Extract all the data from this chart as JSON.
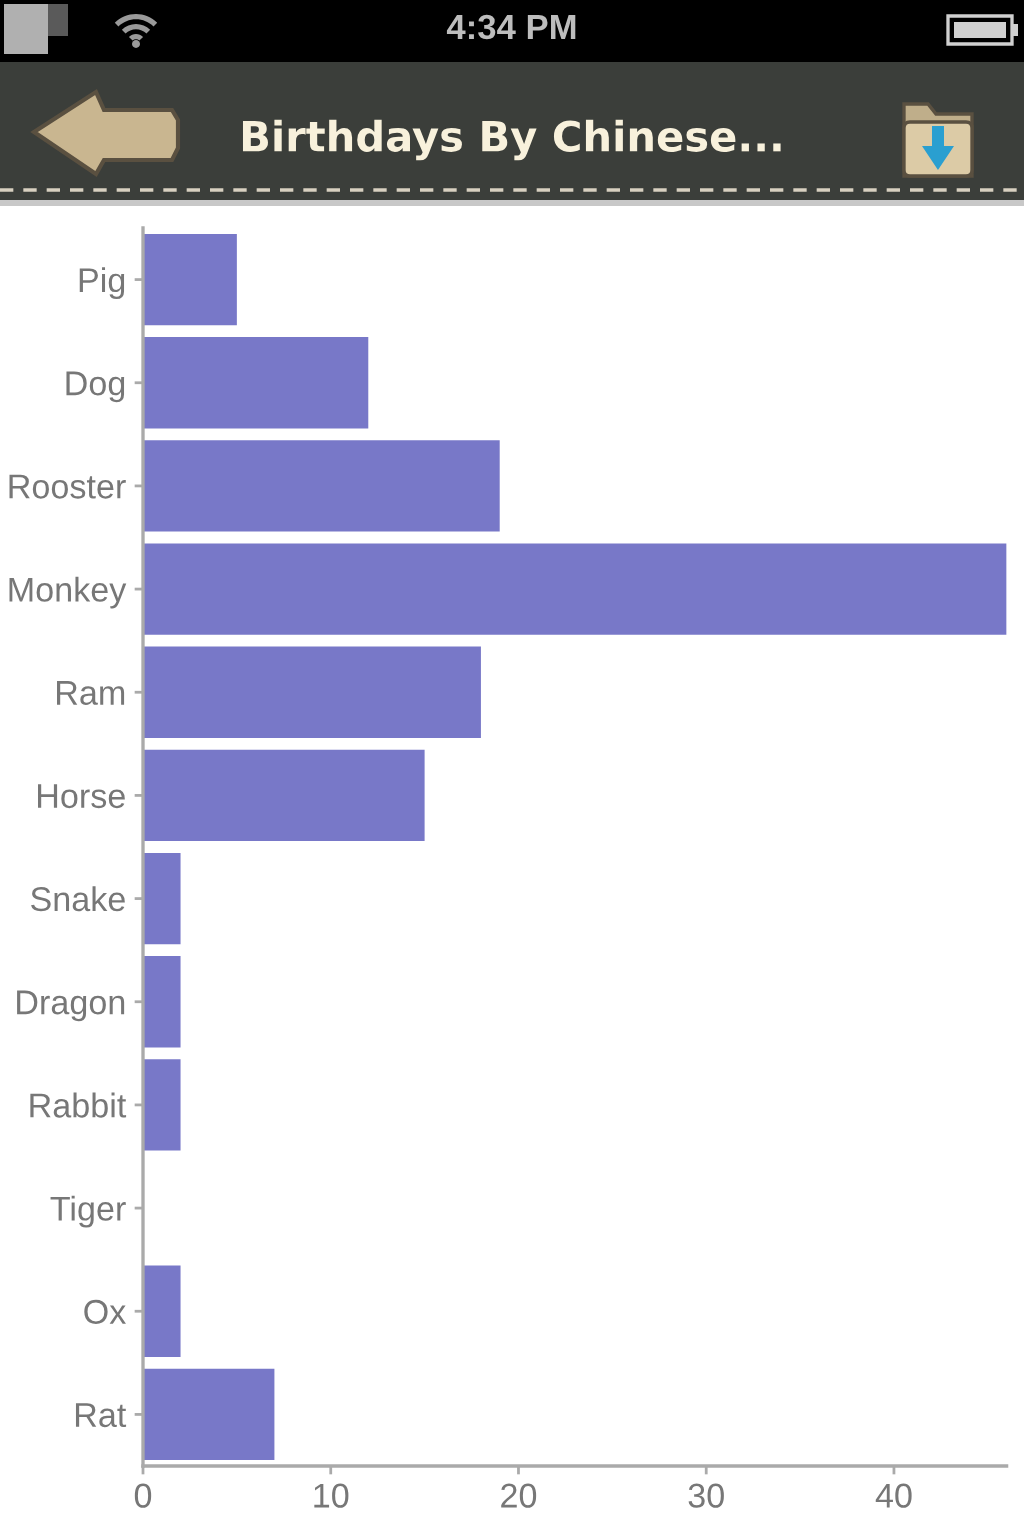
{
  "chart_data": {
    "type": "bar",
    "orientation": "horizontal",
    "title": "Birthdays By Chinese...",
    "annotations": [
      "4:34 PM"
    ],
    "categories": [
      "Pig",
      "Dog",
      "Rooster",
      "Monkey",
      "Ram",
      "Horse",
      "Snake",
      "Dragon",
      "Rabbit",
      "Tiger",
      "Ox",
      "Rat"
    ],
    "values": [
      5,
      12,
      19,
      46,
      18,
      15,
      2,
      2,
      2,
      0,
      2,
      7
    ],
    "color": "#7878c8",
    "xlim": [
      0,
      46
    ],
    "xticks": [
      0,
      10,
      20,
      30,
      40
    ]
  }
}
